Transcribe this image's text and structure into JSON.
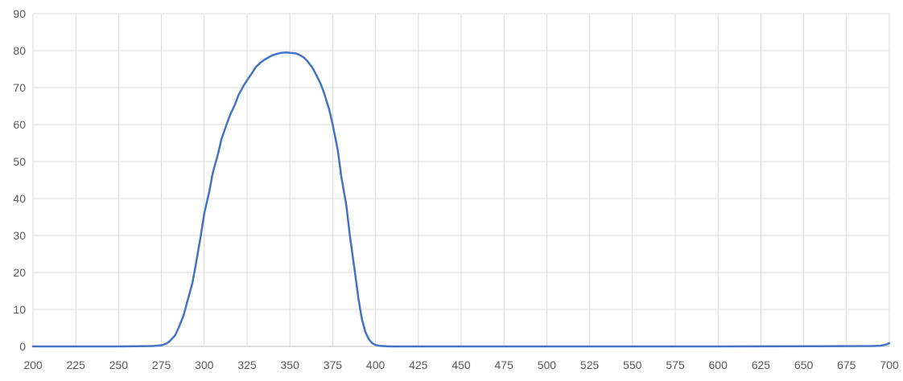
{
  "chart_data": {
    "type": "line",
    "title": "",
    "xlabel": "",
    "ylabel": "",
    "xlim": [
      200,
      700
    ],
    "ylim": [
      0,
      90
    ],
    "x_ticks": [
      200,
      225,
      250,
      275,
      300,
      325,
      350,
      375,
      400,
      425,
      450,
      475,
      500,
      525,
      550,
      575,
      600,
      625,
      650,
      675,
      700
    ],
    "y_ticks": [
      0,
      10,
      20,
      30,
      40,
      50,
      60,
      70,
      80,
      90
    ],
    "grid": true,
    "legend": "none",
    "series": [
      {
        "color": "#4472C4",
        "x": [
          200,
          250,
          270,
          275,
          278,
          280,
          283,
          285,
          288,
          290,
          293,
          295,
          298,
          300,
          303,
          305,
          308,
          310,
          313,
          315,
          318,
          320,
          323,
          325,
          328,
          330,
          333,
          335,
          338,
          340,
          343,
          345,
          348,
          350,
          353,
          355,
          358,
          360,
          363,
          365,
          368,
          370,
          373,
          375,
          378,
          380,
          383,
          385,
          388,
          390,
          392,
          394,
          396,
          398,
          400,
          402,
          404,
          406,
          410,
          420,
          450,
          500,
          550,
          600,
          650,
          690,
          695,
          698,
          700
        ],
        "y": [
          0,
          0,
          0.1,
          0.3,
          0.8,
          1.5,
          3,
          5,
          8.5,
          12,
          17,
          22,
          30,
          36,
          42,
          47,
          52,
          56,
          60,
          62.5,
          65.5,
          68,
          70.5,
          72,
          74,
          75.5,
          76.8,
          77.5,
          78.3,
          78.8,
          79.2,
          79.4,
          79.5,
          79.4,
          79.3,
          79,
          78.2,
          77.3,
          75.5,
          73.8,
          71,
          68.5,
          64,
          60,
          53,
          46,
          38,
          30,
          20,
          13,
          7.5,
          4,
          2,
          0.9,
          0.4,
          0.2,
          0.1,
          0.05,
          0,
          0,
          0,
          0,
          0,
          0,
          0.05,
          0.1,
          0.2,
          0.5,
          0.9
        ]
      }
    ]
  }
}
